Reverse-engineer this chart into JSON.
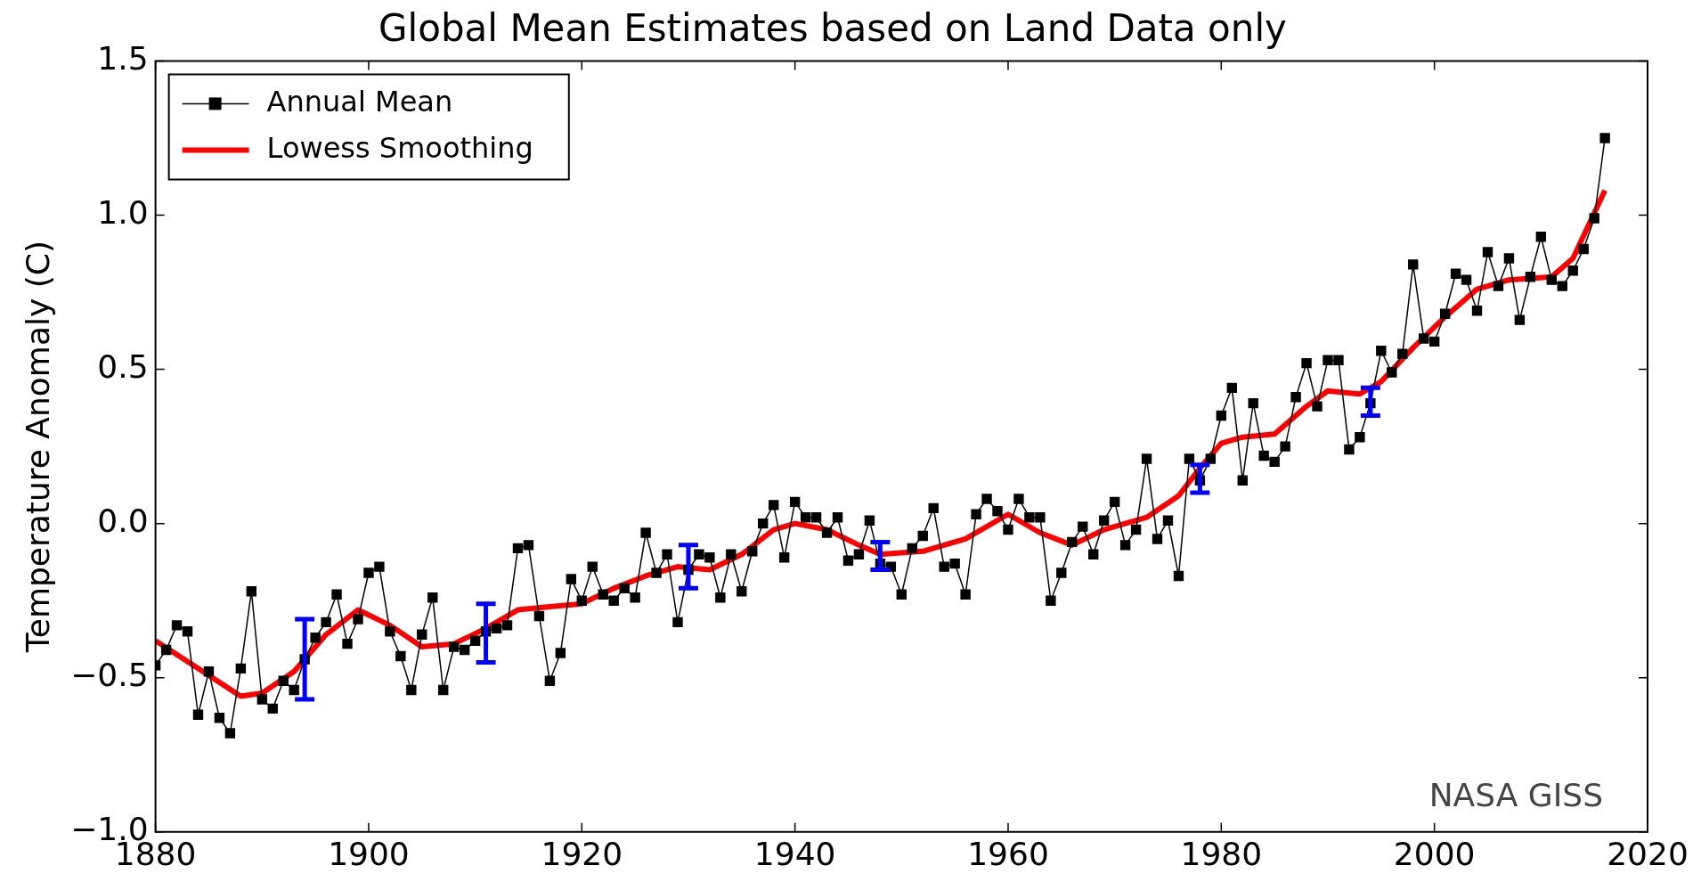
{
  "chart_data": {
    "type": "line",
    "title": "Global Mean Estimates based on Land Data only",
    "ylabel": "Temperature Anomaly (C)",
    "xlim": [
      1880,
      2020
    ],
    "xticks": [
      1880,
      1900,
      1920,
      1940,
      1960,
      1980,
      2000,
      2020
    ],
    "ylim": [
      -1.0,
      1.5
    ],
    "yticks": [
      {
        "value": -1.0,
        "label": "−1.0"
      },
      {
        "value": -0.5,
        "label": "−0.5"
      },
      {
        "value": 0.0,
        "label": "0.0"
      },
      {
        "value": 0.5,
        "label": "0.5"
      },
      {
        "value": 1.0,
        "label": "1.0"
      },
      1.5
    ],
    "grid": false,
    "legend": "top left",
    "annotations": [
      "NASA GISS"
    ],
    "series": [
      {
        "name": "Annual Mean",
        "color": "#000000",
        "marker": "square",
        "x": [
          1880,
          1881,
          1882,
          1883,
          1884,
          1885,
          1886,
          1887,
          1888,
          1889,
          1890,
          1891,
          1892,
          1893,
          1894,
          1895,
          1896,
          1897,
          1898,
          1899,
          1900,
          1901,
          1902,
          1903,
          1904,
          1905,
          1906,
          1907,
          1908,
          1909,
          1910,
          1911,
          1912,
          1913,
          1914,
          1915,
          1916,
          1917,
          1918,
          1919,
          1920,
          1921,
          1922,
          1923,
          1924,
          1925,
          1926,
          1927,
          1928,
          1929,
          1930,
          1931,
          1932,
          1933,
          1934,
          1935,
          1936,
          1937,
          1938,
          1939,
          1940,
          1941,
          1942,
          1943,
          1944,
          1945,
          1946,
          1947,
          1948,
          1949,
          1950,
          1951,
          1952,
          1953,
          1954,
          1955,
          1956,
          1957,
          1958,
          1959,
          1960,
          1961,
          1962,
          1963,
          1964,
          1965,
          1966,
          1967,
          1968,
          1969,
          1970,
          1971,
          1972,
          1973,
          1974,
          1975,
          1976,
          1977,
          1978,
          1979,
          1980,
          1981,
          1982,
          1983,
          1984,
          1985,
          1986,
          1987,
          1988,
          1989,
          1990,
          1991,
          1992,
          1993,
          1994,
          1995,
          1996,
          1997,
          1998,
          1999,
          2000,
          2001,
          2002,
          2003,
          2004,
          2005,
          2006,
          2007,
          2008,
          2009,
          2010,
          2011,
          2012,
          2013,
          2014,
          2015,
          2016
        ],
        "values": [
          -0.46,
          -0.41,
          -0.33,
          -0.35,
          -0.62,
          -0.48,
          -0.63,
          -0.68,
          -0.47,
          -0.22,
          -0.57,
          -0.6,
          -0.51,
          -0.54,
          -0.44,
          -0.37,
          -0.32,
          -0.23,
          -0.39,
          -0.31,
          -0.16,
          -0.14,
          -0.35,
          -0.43,
          -0.54,
          -0.36,
          -0.24,
          -0.54,
          -0.4,
          -0.41,
          -0.38,
          -0.35,
          -0.34,
          -0.33,
          -0.08,
          -0.07,
          -0.3,
          -0.51,
          -0.42,
          -0.18,
          -0.25,
          -0.14,
          -0.23,
          -0.25,
          -0.21,
          -0.24,
          -0.03,
          -0.16,
          -0.1,
          -0.32,
          -0.15,
          -0.1,
          -0.11,
          -0.24,
          -0.1,
          -0.22,
          -0.09,
          0.0,
          0.06,
          -0.11,
          0.07,
          0.02,
          0.02,
          -0.03,
          0.02,
          -0.12,
          -0.1,
          0.01,
          -0.13,
          -0.14,
          -0.23,
          -0.08,
          -0.04,
          0.05,
          -0.14,
          -0.13,
          -0.23,
          0.03,
          0.08,
          0.04,
          -0.02,
          0.08,
          0.02,
          0.02,
          -0.25,
          -0.16,
          -0.06,
          -0.01,
          -0.1,
          0.01,
          0.07,
          -0.07,
          -0.02,
          0.21,
          -0.05,
          0.01,
          -0.17,
          0.21,
          0.14,
          0.21,
          0.35,
          0.44,
          0.14,
          0.39,
          0.22,
          0.2,
          0.25,
          0.41,
          0.52,
          0.38,
          0.53,
          0.53,
          0.24,
          0.28,
          0.39,
          0.56,
          0.49,
          0.55,
          0.84,
          0.6,
          0.59,
          0.68,
          0.81,
          0.79,
          0.69,
          0.88,
          0.77,
          0.86,
          0.66,
          0.8,
          0.93,
          0.79,
          0.77,
          0.82,
          0.89,
          0.99,
          1.25
        ],
        "errors": [
          null,
          null,
          null,
          null,
          null,
          null,
          null,
          null,
          null,
          null,
          null,
          null,
          null,
          null,
          [
            -0.57,
            -0.31
          ],
          null,
          null,
          null,
          null,
          null,
          null,
          null,
          null,
          null,
          null,
          null,
          null,
          null,
          null,
          null,
          null,
          [
            -0.45,
            -0.26
          ],
          null,
          null,
          null,
          null,
          null,
          null,
          null,
          null,
          null,
          null,
          null,
          null,
          null,
          null,
          null,
          null,
          null,
          null,
          [
            -0.21,
            -0.07
          ],
          null,
          null,
          null,
          null,
          null,
          null,
          null,
          null,
          null,
          null,
          null,
          null,
          null,
          null,
          null,
          null,
          null,
          [
            -0.15,
            -0.06
          ],
          null,
          null,
          null,
          null,
          null,
          null,
          null,
          null,
          null,
          null,
          null,
          null,
          null,
          null,
          null,
          null,
          null,
          null,
          null,
          null,
          null,
          null,
          null,
          null,
          null,
          null,
          null,
          null,
          null,
          [
            0.1,
            0.19
          ],
          null,
          null,
          null,
          null,
          null,
          null,
          null,
          null,
          null,
          null,
          null,
          null,
          null,
          null,
          null,
          [
            0.35,
            0.44
          ],
          null,
          null,
          null,
          null,
          null,
          null,
          null,
          null,
          null,
          null,
          null,
          null,
          null,
          null,
          null,
          null,
          null,
          null,
          null,
          null,
          null,
          null
        ]
      },
      {
        "name": "Lowess Smoothing",
        "color": "#ff0000",
        "marker": "none",
        "x": [
          1880,
          1884,
          1888,
          1890,
          1893,
          1896,
          1899,
          1902,
          1905,
          1908,
          1911,
          1914,
          1917,
          1920,
          1923,
          1926,
          1929,
          1932,
          1935,
          1938,
          1940,
          1943,
          1946,
          1948,
          1952,
          1956,
          1960,
          1963,
          1966,
          1969,
          1973,
          1976,
          1978,
          1980,
          1982,
          1985,
          1988,
          1990,
          1993,
          1995,
          1998,
          2001,
          2004,
          2007,
          2011,
          2013,
          2016
        ],
        "values": [
          -0.38,
          -0.47,
          -0.56,
          -0.55,
          -0.48,
          -0.36,
          -0.28,
          -0.33,
          -0.4,
          -0.39,
          -0.34,
          -0.28,
          -0.27,
          -0.26,
          -0.21,
          -0.17,
          -0.14,
          -0.15,
          -0.1,
          -0.02,
          0.0,
          -0.02,
          -0.07,
          -0.1,
          -0.09,
          -0.05,
          0.03,
          -0.03,
          -0.07,
          -0.02,
          0.02,
          0.09,
          0.18,
          0.26,
          0.28,
          0.29,
          0.38,
          0.43,
          0.42,
          0.46,
          0.57,
          0.67,
          0.76,
          0.79,
          0.8,
          0.86,
          1.08
        ]
      }
    ]
  }
}
